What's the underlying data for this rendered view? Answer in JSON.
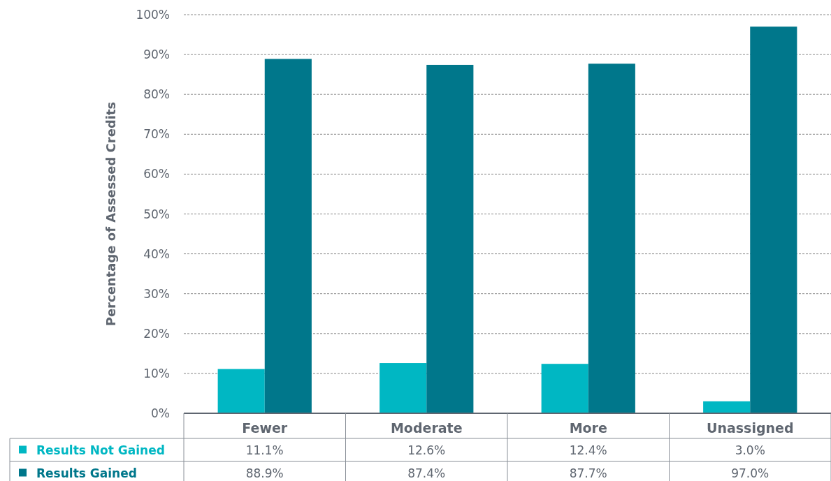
{
  "chart_data": {
    "type": "bar",
    "ylabel": "Percentage of Assessed Credits",
    "categories": [
      "Fewer",
      "Moderate",
      "More",
      "Unassigned"
    ],
    "series": [
      {
        "name": "Results Not Gained",
        "color": "#00b7c3",
        "values": [
          11.1,
          12.6,
          12.4,
          3.0
        ],
        "value_labels": [
          "11.1%",
          "12.6%",
          "12.4%",
          "3.0%"
        ]
      },
      {
        "name": "Results Gained",
        "color": "#00778b",
        "values": [
          88.9,
          87.4,
          87.7,
          97.0
        ],
        "value_labels": [
          "88.9%",
          "87.4%",
          "87.7%",
          "97.0%"
        ]
      }
    ],
    "ylim": [
      0,
      100
    ],
    "yticks": [
      {
        "value": 0,
        "label": "0%"
      },
      {
        "value": 10,
        "label": "10%"
      },
      {
        "value": 20,
        "label": "20%"
      },
      {
        "value": 30,
        "label": "30%"
      },
      {
        "value": 40,
        "label": "40%"
      },
      {
        "value": 50,
        "label": "50%"
      },
      {
        "value": 60,
        "label": "60%"
      },
      {
        "value": 70,
        "label": "70%"
      },
      {
        "value": 80,
        "label": "80%"
      },
      {
        "value": 90,
        "label": "90%"
      },
      {
        "value": 100,
        "label": "100%"
      }
    ],
    "grid": "y",
    "legend": "bottom"
  }
}
